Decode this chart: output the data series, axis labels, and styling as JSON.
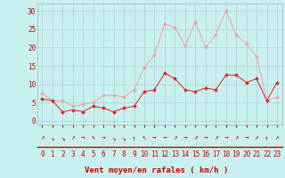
{
  "hours": [
    0,
    1,
    2,
    3,
    4,
    5,
    6,
    7,
    8,
    9,
    10,
    11,
    12,
    13,
    14,
    15,
    16,
    17,
    18,
    19,
    20,
    21,
    22,
    23
  ],
  "wind_avg": [
    6,
    5.5,
    2.5,
    3,
    2.5,
    4,
    3.5,
    2.5,
    3.5,
    4,
    8,
    8.5,
    13,
    11.5,
    8.5,
    8,
    9,
    8.5,
    12.5,
    12.5,
    10.5,
    11.5,
    5.5,
    10.5
  ],
  "wind_gust": [
    7.5,
    5.5,
    5.5,
    4,
    4.5,
    5,
    7,
    7,
    6.5,
    8.5,
    14.5,
    18,
    26.5,
    25.5,
    20.5,
    27,
    20,
    23.5,
    30,
    23.5,
    21,
    17.5,
    5.5,
    6.5
  ],
  "bg_color": "#c8f0f0",
  "grid_color": "#b0d0d0",
  "line_avg_color": "#dd2222",
  "line_gust_color": "#f0a0a0",
  "marker_size": 2.0,
  "xlabel": "Vent moyen/en rafales ( km/h )",
  "xlabel_color": "#cc0000",
  "xlabel_fontsize": 6.5,
  "tick_color": "#cc0000",
  "tick_fontsize": 5.5,
  "ytick_values": [
    0,
    5,
    10,
    15,
    20,
    25,
    30
  ],
  "ylim": [
    -1,
    32
  ],
  "xlim": [
    -0.5,
    23.5
  ],
  "arrows": [
    "↗",
    "↘",
    "↘",
    "↗",
    "→",
    "↖",
    "→",
    "↘",
    "↘",
    "↑",
    "↖",
    "→",
    "→",
    "↗",
    "→",
    "↗",
    "→",
    "↗",
    "→",
    "↗",
    "→",
    "↗",
    "↑",
    "↗"
  ]
}
